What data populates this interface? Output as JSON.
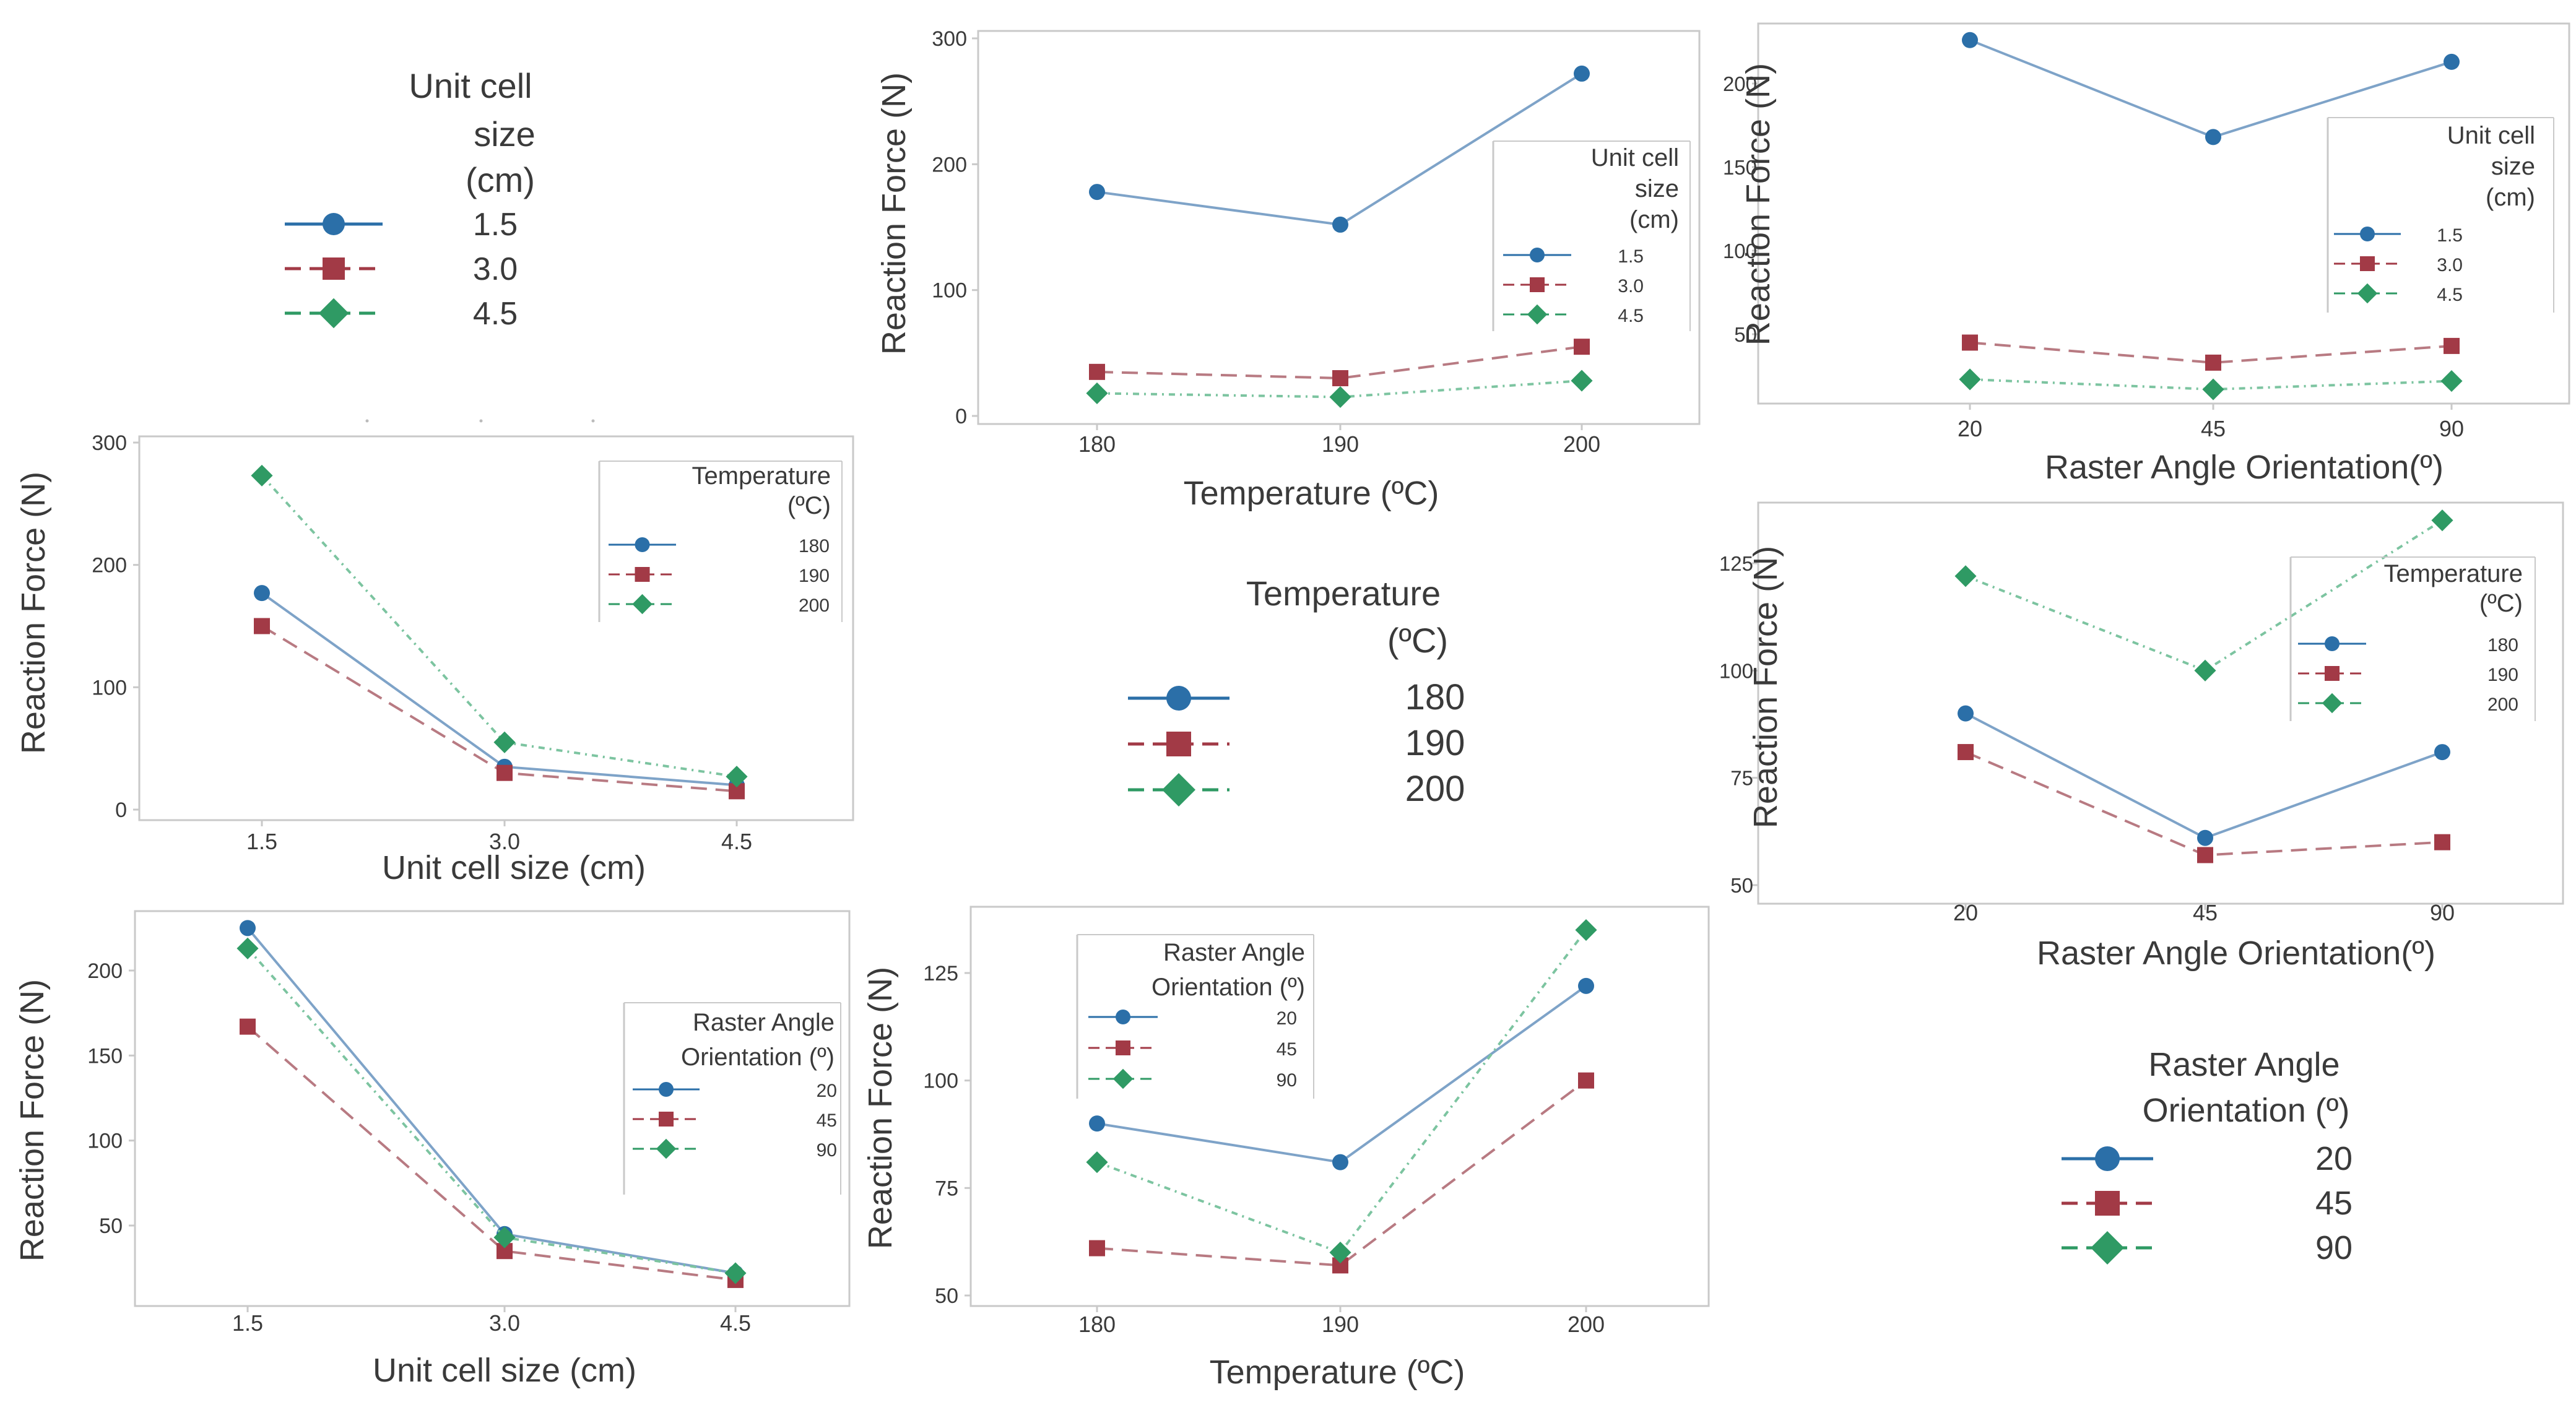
{
  "colors": {
    "series1": "#2b6fa8",
    "series1_line": "#7ea3c8",
    "series2": "#a23a46",
    "series2_line": "#b87a82",
    "series3": "#2f9a64",
    "series3_line": "#7cc4a0",
    "frame": "#c9c9c9",
    "text": "#3a3a3a"
  },
  "legends": {
    "unit_cell": {
      "title_lines": [
        "Unit cell",
        "size",
        "(cm)"
      ],
      "entries": [
        "1.5",
        "3.0",
        "4.5"
      ]
    },
    "temperature": {
      "title_lines": [
        "Temperature",
        "(ºC)"
      ],
      "entries": [
        "180",
        "190",
        "200"
      ]
    },
    "raster": {
      "title_lines": [
        "Raster Angle",
        "Orientation (º)"
      ],
      "entries": [
        "20",
        "45",
        "90"
      ]
    }
  },
  "chart_data": [
    {
      "id": "c1",
      "type": "line",
      "xlabel": "Temperature (ºC)",
      "ylabel": "Reaction Force (N)",
      "categories": [
        "180",
        "190",
        "200"
      ],
      "ylim": [
        -5,
        300
      ],
      "yticks": [
        0,
        100,
        200,
        300
      ],
      "legend_title": [
        "Unit cell",
        "size",
        "(cm)"
      ],
      "series": [
        {
          "name": "1.5",
          "values": [
            178,
            152,
            272
          ]
        },
        {
          "name": "3.0",
          "values": [
            35,
            30,
            55
          ]
        },
        {
          "name": "4.5",
          "values": [
            18,
            15,
            28
          ]
        }
      ]
    },
    {
      "id": "c2",
      "type": "line",
      "xlabel": "Raster Angle Orientation(º)",
      "ylabel": "Reaction Force (N)",
      "categories": [
        "20",
        "45",
        "90"
      ],
      "ylim": [
        10,
        240
      ],
      "yticks": [
        50,
        100,
        150,
        200
      ],
      "legend_title": [
        "Unit cell",
        "size",
        "(cm)"
      ],
      "series": [
        {
          "name": "1.5",
          "values": [
            226,
            168,
            213
          ]
        },
        {
          "name": "3.0",
          "values": [
            45,
            33,
            43
          ]
        },
        {
          "name": "4.5",
          "values": [
            23,
            17,
            22
          ]
        }
      ]
    },
    {
      "id": "c3",
      "type": "line",
      "xlabel": "Unit cell size (cm)",
      "ylabel": "Reaction Force (N)",
      "categories": [
        "1.5",
        "3.0",
        "4.5"
      ],
      "ylim": [
        -8,
        300
      ],
      "yticks": [
        0,
        100,
        200,
        300
      ],
      "legend_title": [
        "Temperature",
        "(ºC)"
      ],
      "series": [
        {
          "name": "180",
          "values": [
            177,
            35,
            20
          ]
        },
        {
          "name": "190",
          "values": [
            150,
            30,
            15
          ]
        },
        {
          "name": "200",
          "values": [
            273,
            55,
            27
          ]
        }
      ]
    },
    {
      "id": "c4",
      "type": "line",
      "xlabel": "Raster Angle Orientation(º)",
      "ylabel": "Reaction Force (N)",
      "categories": [
        "20",
        "45",
        "90"
      ],
      "ylim": [
        47,
        140
      ],
      "yticks": [
        50,
        75,
        100,
        125
      ],
      "legend_title": [
        "Temperature",
        "(ºC)"
      ],
      "series": [
        {
          "name": "180",
          "values": [
            90,
            61,
            81
          ]
        },
        {
          "name": "190",
          "values": [
            81,
            57,
            60
          ]
        },
        {
          "name": "200",
          "values": [
            122,
            100,
            135
          ]
        }
      ]
    },
    {
      "id": "c5",
      "type": "line",
      "xlabel": "Unit cell size (cm)",
      "ylabel": "Reaction Force (N)",
      "categories": [
        "1.5",
        "3.0",
        "4.5"
      ],
      "ylim": [
        5,
        240
      ],
      "yticks": [
        50,
        100,
        150,
        200
      ],
      "legend_title": [
        "Raster Angle",
        "Orientation (º)"
      ],
      "series": [
        {
          "name": "20",
          "values": [
            225,
            45,
            22
          ]
        },
        {
          "name": "45",
          "values": [
            167,
            35,
            18
          ]
        },
        {
          "name": "90",
          "values": [
            213,
            43,
            22
          ]
        }
      ]
    },
    {
      "id": "c6",
      "type": "line",
      "xlabel": "Temperature (ºC)",
      "ylabel": "Reaction Force (N)",
      "categories": [
        "180",
        "190",
        "200"
      ],
      "ylim": [
        48,
        138
      ],
      "yticks": [
        50,
        75,
        100,
        125
      ],
      "legend_title": [
        "Raster Angle",
        "Orientation (º)"
      ],
      "series": [
        {
          "name": "20",
          "values": [
            90,
            81,
            122
          ]
        },
        {
          "name": "45",
          "values": [
            61,
            57,
            100
          ]
        },
        {
          "name": "90",
          "values": [
            81,
            60,
            135
          ]
        }
      ]
    }
  ]
}
